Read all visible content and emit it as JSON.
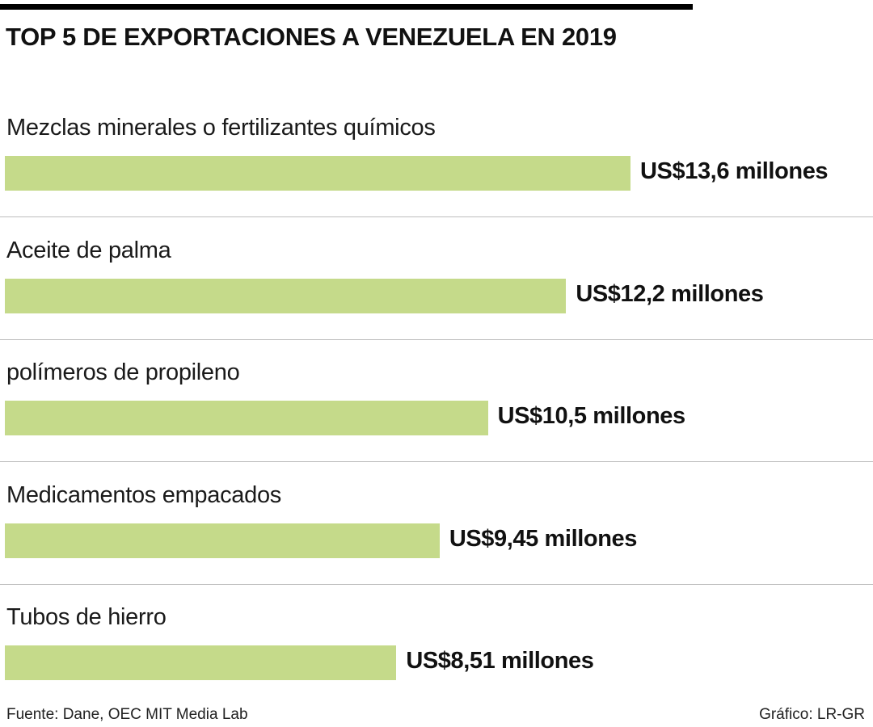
{
  "chart_data": {
    "type": "bar",
    "orientation": "horizontal",
    "title": "TOP 5 DE EXPORTACIONES A VENEZUELA EN 2019",
    "categories": [
      "Mezclas minerales o fertilizantes químicos",
      "Aceite de palma",
      "polímeros de propileno",
      "Medicamentos empacados",
      "Tubos de hierro"
    ],
    "values": [
      13.6,
      12.2,
      10.5,
      9.45,
      8.51
    ],
    "value_labels": [
      "US$13,6 millones",
      "US$12,2 millones",
      "US$10,5 millones",
      "US$9,45 millones",
      "US$8,51 millones"
    ],
    "unit": "millones US$",
    "xlim": [
      0,
      13.6
    ],
    "grid": false,
    "bar_color": "#c5da8a"
  },
  "footer": {
    "source": "Fuente: Dane, OEC MIT Media Lab",
    "credit": "Gráfico: LR-GR"
  }
}
